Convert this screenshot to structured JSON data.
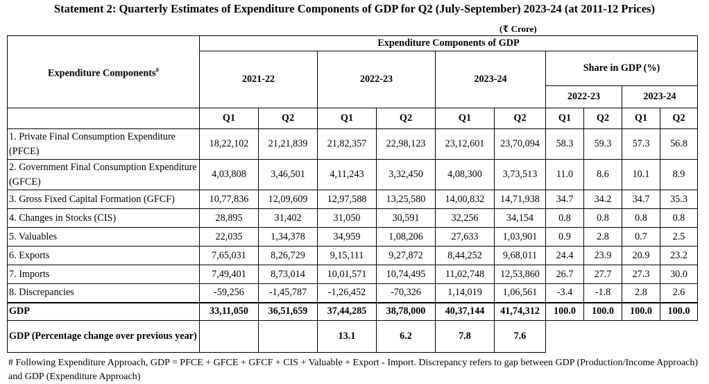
{
  "title": "Statement 2: Quarterly Estimates of Expenditure Components of GDP for Q2 (July-September) 2023-24 (at 2011-12 Prices)",
  "unit": "(₹ Crore)",
  "header": {
    "row_label": "Expenditure Components",
    "row_label_mark": "#",
    "group": "Expenditure Components of GDP",
    "years": [
      "2021-22",
      "2022-23",
      "2023-24"
    ],
    "share_label": "Share in GDP (%)",
    "share_years": [
      "2022-23",
      "2023-24"
    ],
    "quarters": [
      "Q1",
      "Q2",
      "Q1",
      "Q2",
      "Q1",
      "Q2",
      "Q1",
      "Q2",
      "Q1",
      "Q2"
    ]
  },
  "rows": [
    {
      "label": "1. Private Final Consumption Expenditure (PFCE)",
      "values": [
        "18,22,102",
        "21,21,839",
        "21,82,357",
        "22,98,123",
        "23,12,601",
        "23,70,094",
        "58.3",
        "59.3",
        "57.3",
        "56.8"
      ]
    },
    {
      "label": "2. Government Final Consumption Expenditure (GFCE)",
      "values": [
        "4,03,808",
        "3,46,501",
        "4,11,243",
        "3,32,450",
        "4,08,300",
        "3,73,513",
        "11.0",
        "8.6",
        "10.1",
        "8.9"
      ]
    },
    {
      "label": "3. Gross Fixed Capital Formation (GFCF)",
      "values": [
        "10,77,836",
        "12,09,609",
        "12,97,588",
        "13,25,580",
        "14,00,832",
        "14,71,938",
        "34.7",
        "34.2",
        "34.7",
        "35.3"
      ]
    },
    {
      "label": "4. Changes in Stocks (CIS)",
      "values": [
        "28,895",
        "31,402",
        "31,050",
        "30,591",
        "32,256",
        "34,154",
        "0.8",
        "0.8",
        "0.8",
        "0.8"
      ]
    },
    {
      "label": "5. Valuables",
      "values": [
        "22,035",
        "1,34,378",
        "34,959",
        "1,08,206",
        "27,633",
        "1,03,901",
        "0.9",
        "2.8",
        "0.7",
        "2.5"
      ]
    },
    {
      "label": "6. Exports",
      "values": [
        "7,65,031",
        "8,26,729",
        "9,15,111",
        "9,27,872",
        "8,44,252",
        "9,68,011",
        "24.4",
        "23.9",
        "20.9",
        "23.2"
      ]
    },
    {
      "label": "7. Imports",
      "values": [
        "7,49,401",
        "8,73,014",
        "10,01,571",
        "10,74,495",
        "11,02,748",
        "12,53,860",
        "26.7",
        "27.7",
        "27.3",
        "30.0"
      ]
    },
    {
      "label": "8. Discrepancies",
      "values": [
        "-59,256",
        "-1,45,787",
        "-1,26,452",
        "-70,326",
        "1,14,019",
        "1,06,561",
        "-3.4",
        "-1.8",
        "2.8",
        "2.6"
      ]
    }
  ],
  "gdp": {
    "label": "GDP",
    "values": [
      "33,11,050",
      "36,51,659",
      "37,44,285",
      "38,78,000",
      "40,37,144",
      "41,74,312",
      "100.0",
      "100.0",
      "100.0",
      "100.0"
    ]
  },
  "growth": {
    "label": "GDP  (Percentage change over previous year)",
    "values": [
      "",
      "",
      "13.1",
      "6.2",
      "7.8",
      "7.6"
    ]
  },
  "footnote": "# Following Expenditure Approach, GDP = PFCE + GFCE + GFCF + CIS + Valuable + Export - Import. Discrepancy refers to gap between GDP (Production/Income Approach) and GDP (Expenditure Approach)"
}
